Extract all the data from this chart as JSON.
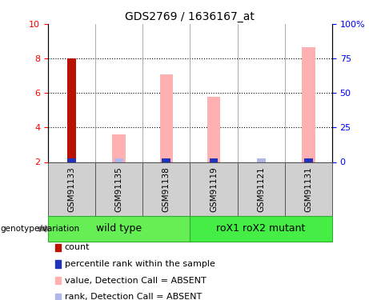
{
  "title": "GDS2769 / 1636167_at",
  "samples": [
    "GSM91133",
    "GSM91135",
    "GSM91138",
    "GSM91119",
    "GSM91121",
    "GSM91131"
  ],
  "wt_indices": [
    0,
    1,
    2
  ],
  "mut_indices": [
    3,
    4,
    5
  ],
  "wt_label": "wild type",
  "mut_label": "roX1 roX2 mutant",
  "count_values": [
    8.0,
    0.0,
    0.0,
    0.0,
    0.0,
    0.0
  ],
  "rank_values": [
    0.2,
    0.0,
    0.2,
    0.2,
    0.0,
    0.25
  ],
  "value_absent": [
    0.0,
    3.6,
    7.1,
    5.8,
    0.0,
    8.65
  ],
  "rank_absent_vals": [
    0.0,
    0.2,
    0.2,
    0.2,
    0.15,
    0.25
  ],
  "ylim_min": 2,
  "ylim_max": 10,
  "yticks_left": [
    2,
    4,
    6,
    8,
    10
  ],
  "yticks_right": [
    0,
    25,
    50,
    75,
    100
  ],
  "count_color": "#bb1100",
  "rank_color": "#2233bb",
  "value_absent_color": "#ffb0b0",
  "rank_absent_color": "#b0b8e8",
  "bar_width": 0.28,
  "small_bar_height": 0.22,
  "grid_yticks": [
    4,
    6,
    8
  ],
  "group_box_color": "#d0d0d0",
  "wt_color": "#66ee55",
  "mut_color": "#44ee44",
  "genotype_label": "genotype/variation",
  "legend_items": [
    {
      "label": "count",
      "color": "#bb1100"
    },
    {
      "label": "percentile rank within the sample",
      "color": "#2233bb"
    },
    {
      "label": "value, Detection Call = ABSENT",
      "color": "#ffb0b0"
    },
    {
      "label": "rank, Detection Call = ABSENT",
      "color": "#b0b8e8"
    }
  ],
  "title_fontsize": 10,
  "tick_fontsize": 8,
  "sample_fontsize": 7.5,
  "group_fontsize": 9,
  "legend_fontsize": 8
}
